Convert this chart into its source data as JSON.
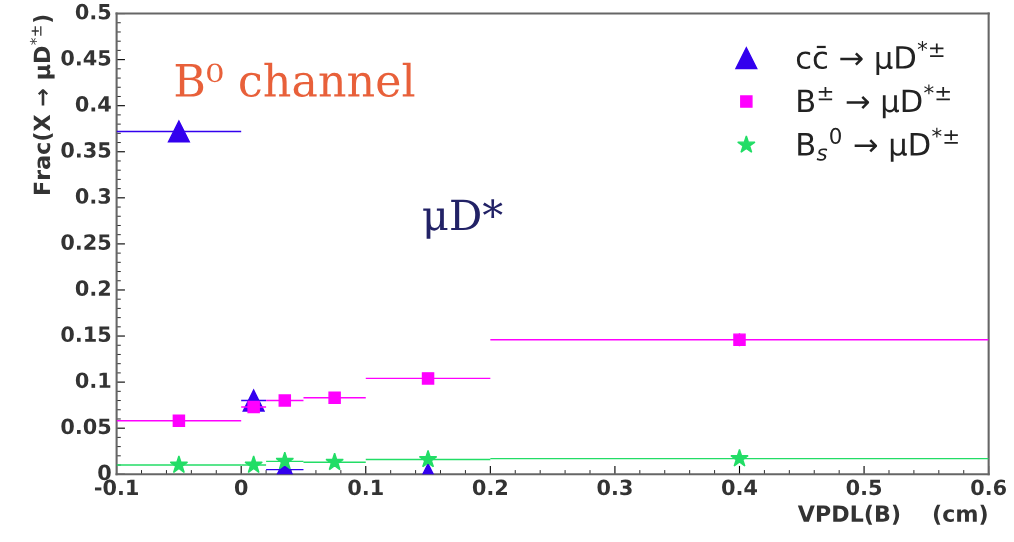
{
  "chart_data": {
    "type": "scatter",
    "xlabel": "VPDL(B)    (cm)",
    "ylabel": "Frac(X → μD$^{*±}$)",
    "annotations": [
      "B⁰ channel",
      "μD*"
    ],
    "xlim": [
      -0.1,
      0.6
    ],
    "xticks": [
      -0.1,
      0,
      0.1,
      0.2,
      0.3,
      0.4,
      0.5,
      0.6
    ],
    "ylim": [
      0,
      0.5
    ],
    "yticks": [
      0,
      0.05,
      0.1,
      0.15,
      0.2,
      0.25,
      0.3,
      0.35,
      0.4,
      0.45,
      0.5
    ],
    "grid": false,
    "legend": "top right",
    "series": [
      {
        "name": "cc̄ → μD$^{*±}$",
        "color": "#3300ee",
        "marker": "triangle",
        "x": [
          -0.05,
          0.01,
          0.035,
          0.15
        ],
        "values": [
          0.372,
          0.08,
          0.005,
          0.0
        ],
        "xerrors": [
          0.05,
          0.01,
          0.015,
          null
        ]
      },
      {
        "name": "B$^{±}$ → μD$^{*±}$",
        "color": "#ff00ff",
        "marker": "square",
        "x": [
          -0.05,
          0.01,
          0.035,
          0.075,
          0.15,
          0.4
        ],
        "values": [
          0.058,
          0.073,
          0.08,
          0.083,
          0.104,
          0.146
        ],
        "xerrors": [
          0.05,
          0.01,
          0.015,
          0.025,
          0.05,
          0.2
        ],
        "errors": [
          null,
          null,
          null,
          null,
          null,
          0.007
        ]
      },
      {
        "name": "B$_{s}$$^{0}$ → μD$^{*±}$",
        "color": "#22dd66",
        "marker": "star",
        "x": [
          -0.05,
          0.01,
          0.035,
          0.075,
          0.15,
          0.4
        ],
        "values": [
          0.01,
          0.01,
          0.014,
          0.013,
          0.016,
          0.017
        ],
        "xerrors": [
          0.05,
          0.01,
          0.015,
          0.025,
          0.05,
          0.2
        ]
      }
    ]
  }
}
